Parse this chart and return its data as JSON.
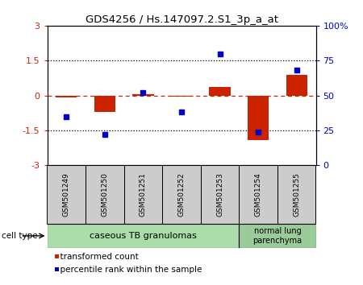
{
  "title": "GDS4256 / Hs.147097.2.S1_3p_a_at",
  "samples": [
    "GSM501249",
    "GSM501250",
    "GSM501251",
    "GSM501252",
    "GSM501253",
    "GSM501254",
    "GSM501255"
  ],
  "red_values": [
    -0.1,
    -0.7,
    0.05,
    -0.05,
    0.35,
    -1.9,
    0.9
  ],
  "blue_values": [
    35,
    22,
    52,
    38,
    80,
    24,
    68
  ],
  "ylim_left": [
    -3,
    3
  ],
  "ylim_right": [
    0,
    100
  ],
  "yticks_left": [
    -3,
    -1.5,
    0,
    1.5,
    3
  ],
  "yticks_right": [
    0,
    25,
    50,
    75,
    100
  ],
  "group1_label": "caseous TB granulomas",
  "group2_label": "normal lung\nparenchyma",
  "group1_indices": [
    0,
    1,
    2,
    3,
    4
  ],
  "group2_indices": [
    5,
    6
  ],
  "cell_type_label": "cell type",
  "legend1_label": "transformed count",
  "legend2_label": "percentile rank within the sample",
  "red_color": "#cc2200",
  "blue_color": "#0000cc",
  "group1_bg": "#aaddaa",
  "group2_bg": "#99cc99",
  "sample_box_bg": "#cccccc",
  "bar_width": 0.55
}
